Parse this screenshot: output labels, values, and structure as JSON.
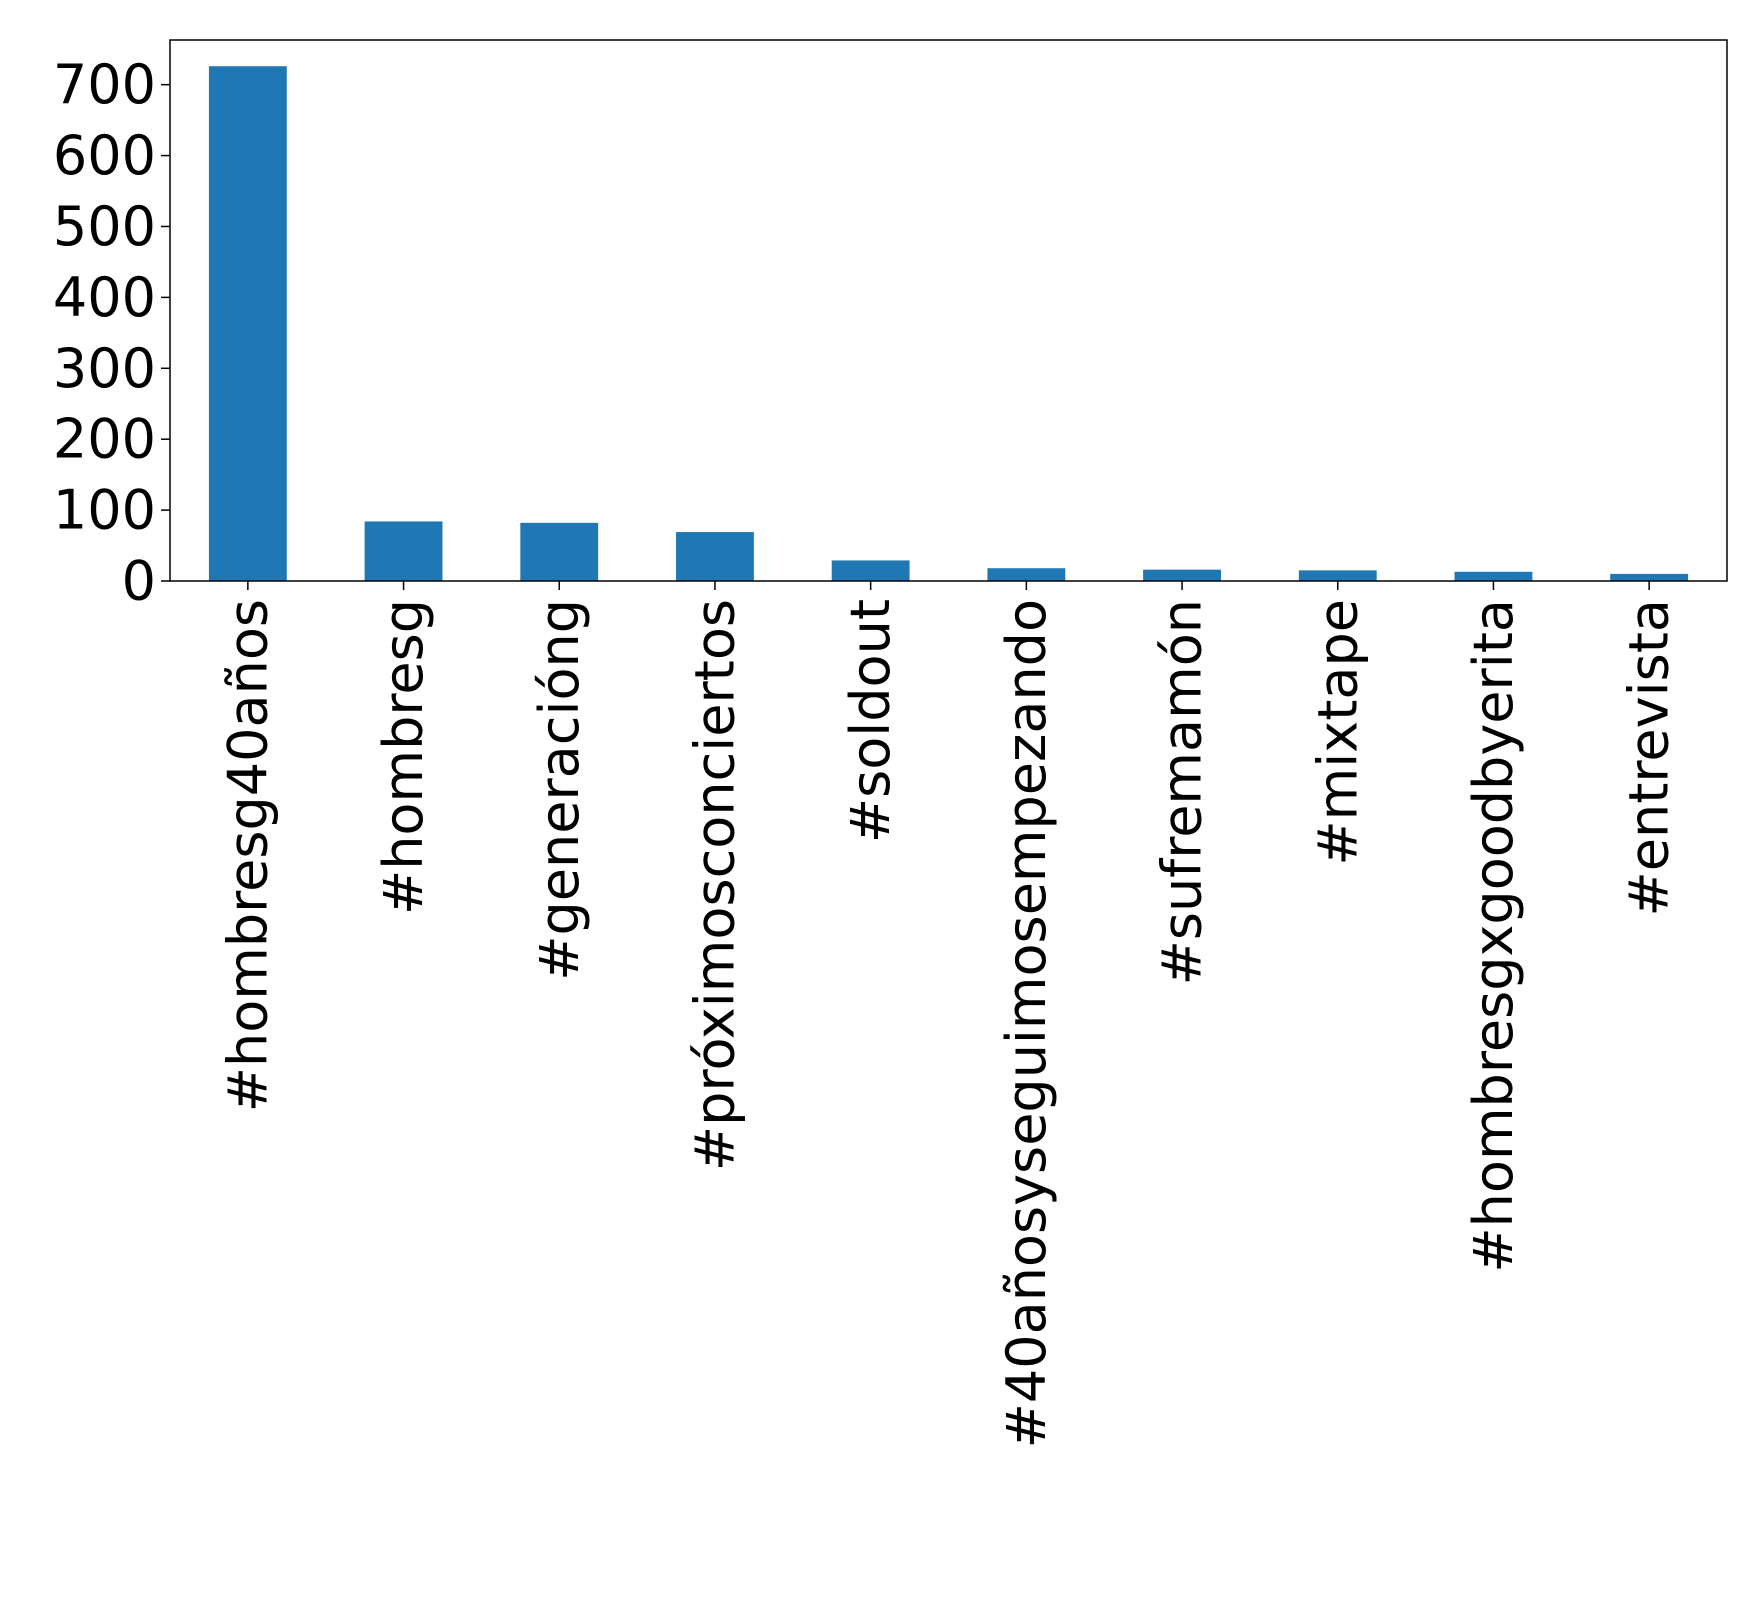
{
  "chart_data": {
    "type": "bar",
    "title": "",
    "xlabel": "",
    "ylabel": "",
    "categories": [
      "#hombresg40años",
      "#hombresg",
      "#generacióng",
      "#próximosconciertos",
      "#soldout",
      "#40añosyseguimosempezando",
      "#sufremamón",
      "#mixtape",
      "#hombresgxgoodbyerita",
      "#entrevista"
    ],
    "values": [
      726,
      84,
      82,
      69,
      29,
      18,
      16,
      15,
      13,
      10
    ],
    "ylim": [
      0,
      763
    ],
    "yticks": [
      0,
      100,
      200,
      300,
      400,
      500,
      600,
      700
    ],
    "grid": false,
    "legend": "none",
    "bar_color": "#1f77b4"
  }
}
